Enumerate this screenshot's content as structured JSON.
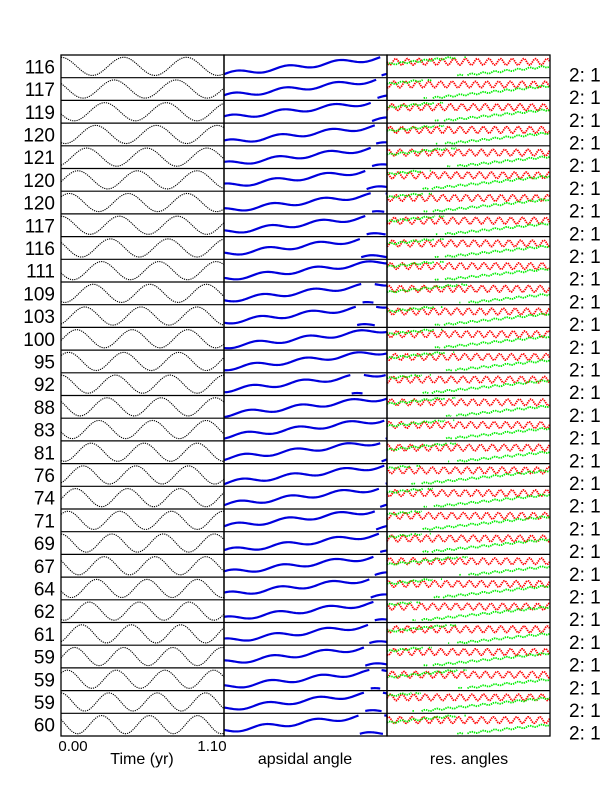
{
  "chart_data": {
    "type": "line",
    "rows": [
      {
        "label": "116",
        "ratio": "2: 1"
      },
      {
        "label": "117",
        "ratio": "2: 1"
      },
      {
        "label": "119",
        "ratio": "2: 1"
      },
      {
        "label": "120",
        "ratio": "2: 1"
      },
      {
        "label": "121",
        "ratio": "2: 1"
      },
      {
        "label": "120",
        "ratio": "2: 1"
      },
      {
        "label": "120",
        "ratio": "2: 1"
      },
      {
        "label": "117",
        "ratio": "2: 1"
      },
      {
        "label": "116",
        "ratio": "2: 1"
      },
      {
        "label": "111",
        "ratio": "2: 1"
      },
      {
        "label": "109",
        "ratio": "2: 1"
      },
      {
        "label": "103",
        "ratio": "2: 1"
      },
      {
        "label": "100",
        "ratio": "2: 1"
      },
      {
        "label": "95",
        "ratio": "2: 1"
      },
      {
        "label": "92",
        "ratio": "2: 1"
      },
      {
        "label": "88",
        "ratio": "2: 1"
      },
      {
        "label": "83",
        "ratio": "2: 1"
      },
      {
        "label": "81",
        "ratio": "2: 1"
      },
      {
        "label": "76",
        "ratio": "2: 1"
      },
      {
        "label": "74",
        "ratio": "2: 1"
      },
      {
        "label": "71",
        "ratio": "2: 1"
      },
      {
        "label": "69",
        "ratio": "2: 1"
      },
      {
        "label": "67",
        "ratio": "2: 1"
      },
      {
        "label": "64",
        "ratio": "2: 1"
      },
      {
        "label": "62",
        "ratio": "2: 1"
      },
      {
        "label": "61",
        "ratio": "2: 1"
      },
      {
        "label": "59",
        "ratio": "2: 1"
      },
      {
        "label": "59",
        "ratio": "2: 1"
      },
      {
        "label": "59",
        "ratio": "2: 1"
      },
      {
        "label": "60",
        "ratio": "2: 1"
      }
    ],
    "columns": [
      {
        "xlabel": "Time (yr)",
        "xlim": [
          0.0,
          1.1
        ],
        "tick_labels": [
          "0.00",
          "1.10"
        ]
      },
      {
        "xlabel": "apsidal angle"
      },
      {
        "xlabel": "res. angles"
      }
    ],
    "signal_cycles": [
      2.6,
      3.4
    ],
    "series_colors": {
      "signal": "#000000",
      "apsidal": "#0000dd",
      "res_angle_1": "#ff0000",
      "res_angle_2": "#00ee00"
    }
  }
}
